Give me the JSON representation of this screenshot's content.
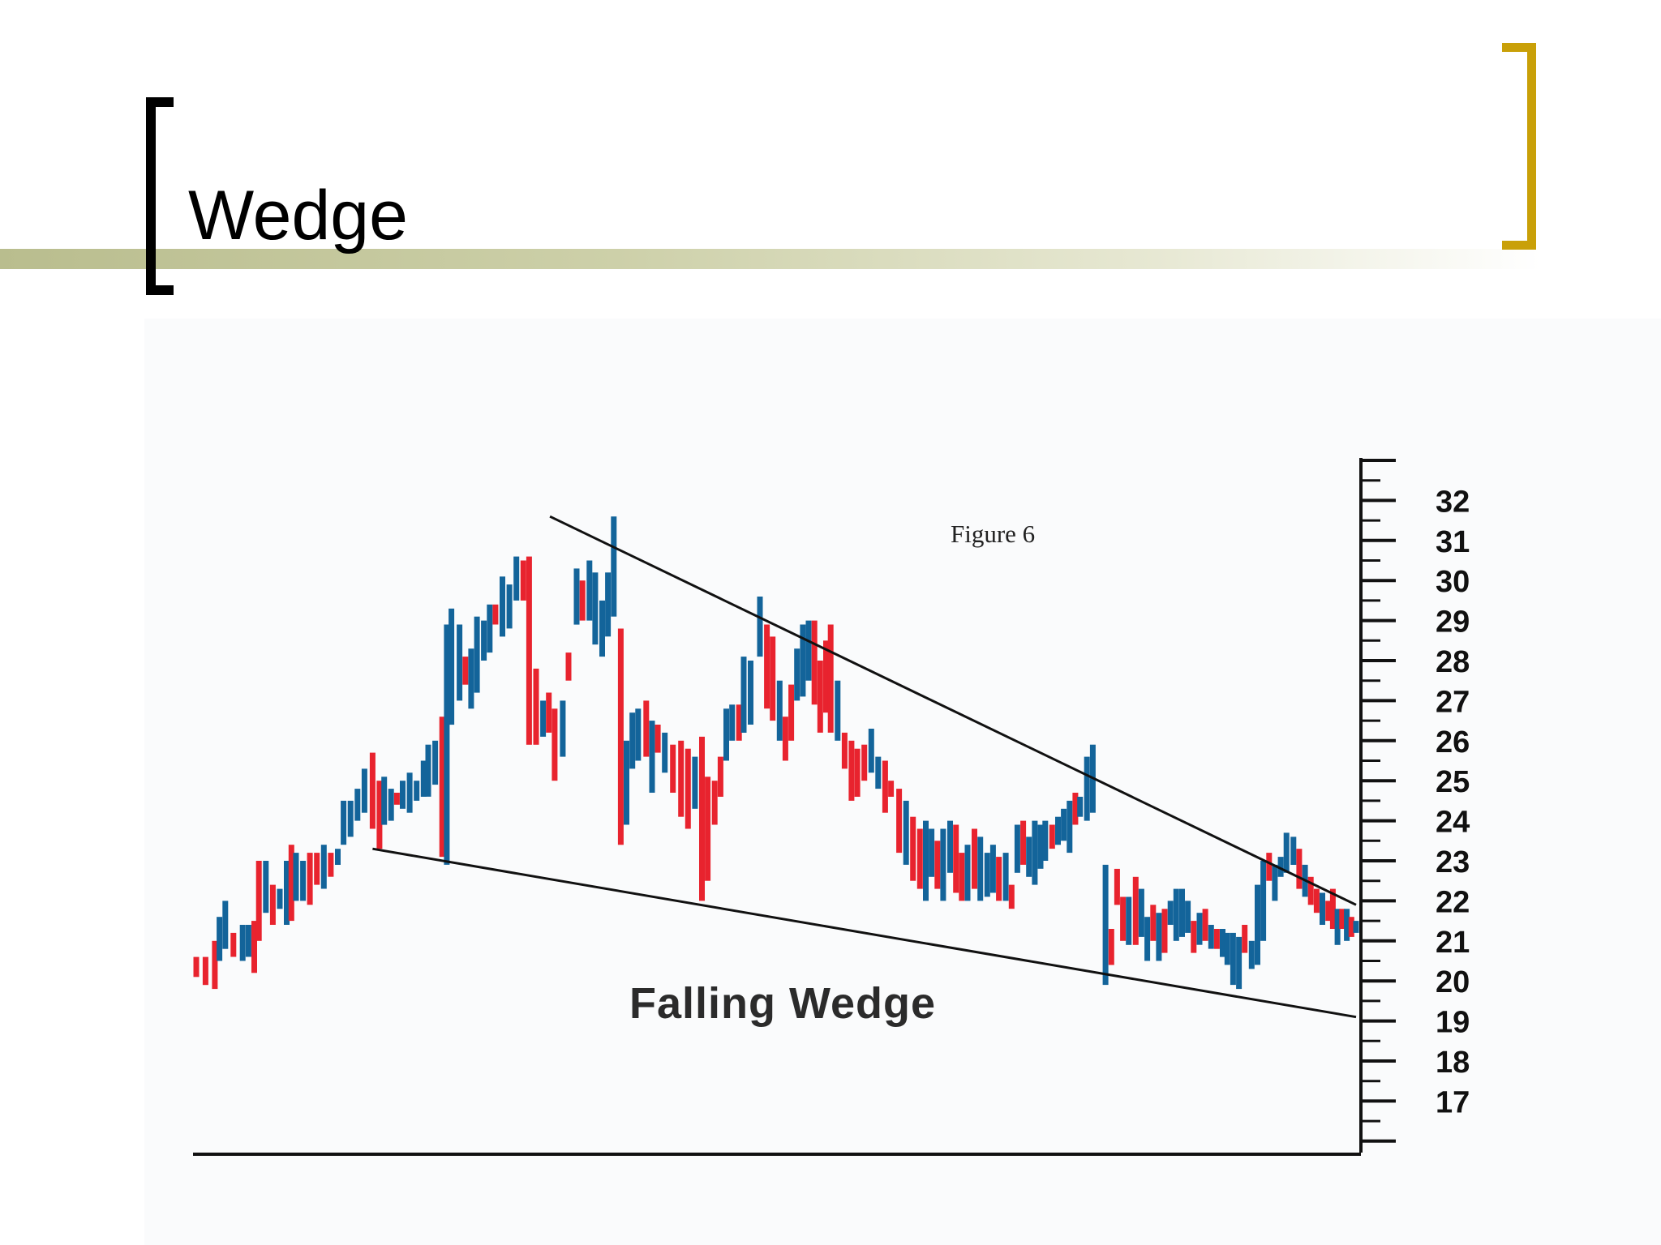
{
  "slide": {
    "title": "Wedge"
  },
  "colors": {
    "band": "#c7ca9e",
    "left_bracket": "#000000",
    "right_bracket": "#c9a008",
    "bar_up": "#13649a",
    "bar_down": "#e8232e",
    "trendline": "#111111"
  },
  "chart_data": {
    "type": "bar",
    "subtype": "ohlc-price-bars",
    "title": "Figure 6",
    "annotation": "Falling Wedge",
    "ylabel": "",
    "xlabel": "",
    "y_axis_position": "right",
    "ylim": [
      16,
      33
    ],
    "y_ticks": [
      17,
      18,
      19,
      20,
      21,
      22,
      23,
      24,
      25,
      26,
      27,
      28,
      29,
      30,
      31,
      32
    ],
    "grid": false,
    "trendlines": [
      {
        "name": "upper",
        "from": [
          0.305,
          31.6
        ],
        "to": [
          1.0,
          21.9
        ]
      },
      {
        "name": "lower",
        "from": [
          0.152,
          23.3
        ],
        "to": [
          1.0,
          19.1
        ]
      }
    ],
    "bars": [
      {
        "x": 0.0,
        "low": 20.1,
        "high": 20.6,
        "dir": "down"
      },
      {
        "x": 0.008,
        "low": 19.9,
        "high": 20.6,
        "dir": "down"
      },
      {
        "x": 0.016,
        "low": 19.8,
        "high": 21.0,
        "dir": "down"
      },
      {
        "x": 0.02,
        "low": 20.5,
        "high": 21.6,
        "dir": "up"
      },
      {
        "x": 0.025,
        "low": 20.8,
        "high": 22.0,
        "dir": "up"
      },
      {
        "x": 0.032,
        "low": 20.6,
        "high": 21.2,
        "dir": "down"
      },
      {
        "x": 0.04,
        "low": 20.5,
        "high": 21.4,
        "dir": "up"
      },
      {
        "x": 0.045,
        "low": 20.6,
        "high": 21.4,
        "dir": "up"
      },
      {
        "x": 0.05,
        "low": 20.2,
        "high": 21.5,
        "dir": "down"
      },
      {
        "x": 0.054,
        "low": 21.0,
        "high": 23.0,
        "dir": "down"
      },
      {
        "x": 0.06,
        "low": 21.7,
        "high": 23.0,
        "dir": "up"
      },
      {
        "x": 0.066,
        "low": 21.4,
        "high": 22.4,
        "dir": "down"
      },
      {
        "x": 0.072,
        "low": 21.8,
        "high": 22.3,
        "dir": "up"
      },
      {
        "x": 0.078,
        "low": 21.4,
        "high": 23.0,
        "dir": "up"
      },
      {
        "x": 0.082,
        "low": 21.5,
        "high": 23.4,
        "dir": "down"
      },
      {
        "x": 0.086,
        "low": 22.0,
        "high": 23.2,
        "dir": "up"
      },
      {
        "x": 0.092,
        "low": 22.0,
        "high": 23.0,
        "dir": "up"
      },
      {
        "x": 0.098,
        "low": 21.9,
        "high": 23.2,
        "dir": "down"
      },
      {
        "x": 0.104,
        "low": 22.4,
        "high": 23.2,
        "dir": "down"
      },
      {
        "x": 0.11,
        "low": 22.3,
        "high": 23.4,
        "dir": "up"
      },
      {
        "x": 0.116,
        "low": 22.6,
        "high": 23.2,
        "dir": "down"
      },
      {
        "x": 0.122,
        "low": 22.9,
        "high": 23.3,
        "dir": "up"
      },
      {
        "x": 0.127,
        "low": 23.4,
        "high": 24.5,
        "dir": "up"
      },
      {
        "x": 0.133,
        "low": 23.6,
        "high": 24.5,
        "dir": "up"
      },
      {
        "x": 0.139,
        "low": 24.0,
        "high": 24.8,
        "dir": "up"
      },
      {
        "x": 0.145,
        "low": 24.2,
        "high": 25.3,
        "dir": "up"
      },
      {
        "x": 0.152,
        "low": 23.8,
        "high": 25.7,
        "dir": "down"
      },
      {
        "x": 0.158,
        "low": 23.3,
        "high": 25.0,
        "dir": "down"
      },
      {
        "x": 0.162,
        "low": 23.9,
        "high": 25.1,
        "dir": "up"
      },
      {
        "x": 0.168,
        "low": 24.0,
        "high": 24.8,
        "dir": "up"
      },
      {
        "x": 0.173,
        "low": 24.4,
        "high": 24.7,
        "dir": "down"
      },
      {
        "x": 0.178,
        "low": 24.3,
        "high": 25.0,
        "dir": "up"
      },
      {
        "x": 0.184,
        "low": 24.2,
        "high": 25.2,
        "dir": "up"
      },
      {
        "x": 0.19,
        "low": 24.5,
        "high": 25.0,
        "dir": "up"
      },
      {
        "x": 0.196,
        "low": 24.6,
        "high": 25.5,
        "dir": "up"
      },
      {
        "x": 0.2,
        "low": 24.6,
        "high": 25.9,
        "dir": "up"
      },
      {
        "x": 0.206,
        "low": 24.9,
        "high": 26.0,
        "dir": "up"
      },
      {
        "x": 0.212,
        "low": 23.1,
        "high": 26.6,
        "dir": "down"
      },
      {
        "x": 0.216,
        "low": 22.9,
        "high": 28.9,
        "dir": "up"
      },
      {
        "x": 0.22,
        "low": 26.4,
        "high": 29.3,
        "dir": "up"
      },
      {
        "x": 0.227,
        "low": 27.0,
        "high": 28.9,
        "dir": "up"
      },
      {
        "x": 0.232,
        "low": 27.4,
        "high": 28.1,
        "dir": "down"
      },
      {
        "x": 0.237,
        "low": 26.8,
        "high": 28.3,
        "dir": "up"
      },
      {
        "x": 0.242,
        "low": 27.2,
        "high": 29.1,
        "dir": "up"
      },
      {
        "x": 0.248,
        "low": 28.0,
        "high": 29.0,
        "dir": "up"
      },
      {
        "x": 0.253,
        "low": 28.2,
        "high": 29.4,
        "dir": "up"
      },
      {
        "x": 0.258,
        "low": 28.9,
        "high": 29.4,
        "dir": "down"
      },
      {
        "x": 0.264,
        "low": 28.6,
        "high": 30.1,
        "dir": "up"
      },
      {
        "x": 0.27,
        "low": 28.8,
        "high": 29.9,
        "dir": "up"
      },
      {
        "x": 0.276,
        "low": 29.5,
        "high": 30.6,
        "dir": "up"
      },
      {
        "x": 0.282,
        "low": 29.5,
        "high": 30.5,
        "dir": "down"
      },
      {
        "x": 0.287,
        "low": 25.9,
        "high": 30.6,
        "dir": "down"
      },
      {
        "x": 0.293,
        "low": 25.9,
        "high": 27.8,
        "dir": "down"
      },
      {
        "x": 0.299,
        "low": 26.1,
        "high": 27.0,
        "dir": "up"
      },
      {
        "x": 0.304,
        "low": 26.2,
        "high": 27.2,
        "dir": "down"
      },
      {
        "x": 0.309,
        "low": 25.0,
        "high": 26.8,
        "dir": "down"
      },
      {
        "x": 0.316,
        "low": 25.6,
        "high": 27.0,
        "dir": "up"
      },
      {
        "x": 0.321,
        "low": 27.5,
        "high": 28.2,
        "dir": "down"
      },
      {
        "x": 0.328,
        "low": 28.9,
        "high": 30.3,
        "dir": "up"
      },
      {
        "x": 0.333,
        "low": 29.0,
        "high": 30.0,
        "dir": "down"
      },
      {
        "x": 0.339,
        "low": 29.0,
        "high": 30.5,
        "dir": "up"
      },
      {
        "x": 0.344,
        "low": 28.4,
        "high": 30.2,
        "dir": "up"
      },
      {
        "x": 0.35,
        "low": 28.1,
        "high": 29.5,
        "dir": "up"
      },
      {
        "x": 0.355,
        "low": 28.6,
        "high": 30.2,
        "dir": "up"
      },
      {
        "x": 0.36,
        "low": 29.1,
        "high": 31.6,
        "dir": "up"
      },
      {
        "x": 0.366,
        "low": 23.4,
        "high": 28.8,
        "dir": "down"
      },
      {
        "x": 0.371,
        "low": 23.9,
        "high": 26.0,
        "dir": "up"
      },
      {
        "x": 0.376,
        "low": 25.3,
        "high": 26.7,
        "dir": "up"
      },
      {
        "x": 0.381,
        "low": 25.5,
        "high": 26.8,
        "dir": "up"
      },
      {
        "x": 0.388,
        "low": 25.6,
        "high": 27.0,
        "dir": "down"
      },
      {
        "x": 0.393,
        "low": 24.7,
        "high": 26.5,
        "dir": "up"
      },
      {
        "x": 0.398,
        "low": 25.7,
        "high": 26.4,
        "dir": "down"
      },
      {
        "x": 0.404,
        "low": 25.2,
        "high": 26.2,
        "dir": "up"
      },
      {
        "x": 0.411,
        "low": 24.7,
        "high": 25.9,
        "dir": "down"
      },
      {
        "x": 0.418,
        "low": 24.1,
        "high": 26.0,
        "dir": "down"
      },
      {
        "x": 0.424,
        "low": 23.8,
        "high": 25.8,
        "dir": "down"
      },
      {
        "x": 0.43,
        "low": 24.3,
        "high": 25.6,
        "dir": "up"
      },
      {
        "x": 0.436,
        "low": 22.0,
        "high": 26.1,
        "dir": "down"
      },
      {
        "x": 0.441,
        "low": 22.5,
        "high": 25.1,
        "dir": "down"
      },
      {
        "x": 0.447,
        "low": 23.9,
        "high": 25.0,
        "dir": "down"
      },
      {
        "x": 0.452,
        "low": 24.6,
        "high": 25.6,
        "dir": "down"
      },
      {
        "x": 0.457,
        "low": 25.5,
        "high": 26.8,
        "dir": "up"
      },
      {
        "x": 0.462,
        "low": 26.0,
        "high": 26.9,
        "dir": "up"
      },
      {
        "x": 0.468,
        "low": 26.0,
        "high": 26.9,
        "dir": "down"
      },
      {
        "x": 0.472,
        "low": 26.2,
        "high": 28.1,
        "dir": "up"
      },
      {
        "x": 0.478,
        "low": 26.4,
        "high": 28.0,
        "dir": "up"
      },
      {
        "x": 0.486,
        "low": 28.1,
        "high": 29.6,
        "dir": "up"
      },
      {
        "x": 0.492,
        "low": 26.8,
        "high": 28.9,
        "dir": "down"
      },
      {
        "x": 0.497,
        "low": 26.5,
        "high": 28.6,
        "dir": "down"
      },
      {
        "x": 0.503,
        "low": 26.0,
        "high": 27.5,
        "dir": "up"
      },
      {
        "x": 0.508,
        "low": 25.5,
        "high": 26.6,
        "dir": "down"
      },
      {
        "x": 0.513,
        "low": 26.0,
        "high": 27.4,
        "dir": "down"
      },
      {
        "x": 0.518,
        "low": 27.0,
        "high": 28.3,
        "dir": "up"
      },
      {
        "x": 0.523,
        "low": 27.1,
        "high": 28.9,
        "dir": "up"
      },
      {
        "x": 0.528,
        "low": 27.5,
        "high": 29.0,
        "dir": "up"
      },
      {
        "x": 0.533,
        "low": 26.9,
        "high": 29.0,
        "dir": "down"
      },
      {
        "x": 0.538,
        "low": 26.2,
        "high": 28.0,
        "dir": "down"
      },
      {
        "x": 0.543,
        "low": 26.7,
        "high": 28.5,
        "dir": "down"
      },
      {
        "x": 0.547,
        "low": 26.2,
        "high": 28.9,
        "dir": "down"
      },
      {
        "x": 0.553,
        "low": 26.0,
        "high": 27.5,
        "dir": "up"
      },
      {
        "x": 0.559,
        "low": 25.3,
        "high": 26.2,
        "dir": "down"
      },
      {
        "x": 0.565,
        "low": 24.5,
        "high": 26.0,
        "dir": "down"
      },
      {
        "x": 0.57,
        "low": 24.6,
        "high": 25.8,
        "dir": "down"
      },
      {
        "x": 0.576,
        "low": 25.0,
        "high": 25.9,
        "dir": "down"
      },
      {
        "x": 0.582,
        "low": 25.2,
        "high": 26.3,
        "dir": "up"
      },
      {
        "x": 0.588,
        "low": 24.8,
        "high": 25.6,
        "dir": "up"
      },
      {
        "x": 0.594,
        "low": 24.2,
        "high": 25.5,
        "dir": "down"
      },
      {
        "x": 0.599,
        "low": 24.6,
        "high": 25.0,
        "dir": "down"
      },
      {
        "x": 0.606,
        "low": 23.2,
        "high": 24.8,
        "dir": "down"
      },
      {
        "x": 0.612,
        "low": 22.9,
        "high": 24.5,
        "dir": "up"
      },
      {
        "x": 0.618,
        "low": 22.5,
        "high": 24.1,
        "dir": "down"
      },
      {
        "x": 0.624,
        "low": 22.3,
        "high": 23.8,
        "dir": "down"
      },
      {
        "x": 0.629,
        "low": 22.0,
        "high": 24.0,
        "dir": "up"
      },
      {
        "x": 0.634,
        "low": 22.6,
        "high": 23.8,
        "dir": "up"
      },
      {
        "x": 0.639,
        "low": 22.3,
        "high": 23.5,
        "dir": "down"
      },
      {
        "x": 0.644,
        "low": 22.0,
        "high": 23.8,
        "dir": "up"
      },
      {
        "x": 0.65,
        "low": 22.7,
        "high": 24.0,
        "dir": "up"
      },
      {
        "x": 0.655,
        "low": 22.2,
        "high": 23.9,
        "dir": "down"
      },
      {
        "x": 0.66,
        "low": 22.0,
        "high": 23.2,
        "dir": "down"
      },
      {
        "x": 0.665,
        "low": 22.0,
        "high": 23.4,
        "dir": "up"
      },
      {
        "x": 0.671,
        "low": 22.3,
        "high": 23.8,
        "dir": "down"
      },
      {
        "x": 0.676,
        "low": 22.0,
        "high": 23.6,
        "dir": "up"
      },
      {
        "x": 0.682,
        "low": 22.1,
        "high": 23.2,
        "dir": "up"
      },
      {
        "x": 0.687,
        "low": 22.2,
        "high": 23.4,
        "dir": "up"
      },
      {
        "x": 0.692,
        "low": 22.0,
        "high": 23.1,
        "dir": "down"
      },
      {
        "x": 0.698,
        "low": 22.0,
        "high": 23.2,
        "dir": "up"
      },
      {
        "x": 0.703,
        "low": 21.8,
        "high": 22.4,
        "dir": "down"
      },
      {
        "x": 0.708,
        "low": 22.7,
        "high": 23.9,
        "dir": "up"
      },
      {
        "x": 0.713,
        "low": 22.9,
        "high": 24.0,
        "dir": "down"
      },
      {
        "x": 0.718,
        "low": 22.6,
        "high": 23.6,
        "dir": "up"
      },
      {
        "x": 0.723,
        "low": 22.4,
        "high": 24.0,
        "dir": "up"
      },
      {
        "x": 0.728,
        "low": 22.8,
        "high": 23.9,
        "dir": "up"
      },
      {
        "x": 0.732,
        "low": 23.0,
        "high": 24.0,
        "dir": "up"
      },
      {
        "x": 0.738,
        "low": 23.3,
        "high": 23.9,
        "dir": "down"
      },
      {
        "x": 0.743,
        "low": 23.4,
        "high": 24.1,
        "dir": "up"
      },
      {
        "x": 0.748,
        "low": 23.5,
        "high": 24.3,
        "dir": "up"
      },
      {
        "x": 0.753,
        "low": 23.2,
        "high": 24.5,
        "dir": "up"
      },
      {
        "x": 0.758,
        "low": 23.9,
        "high": 24.7,
        "dir": "down"
      },
      {
        "x": 0.762,
        "low": 24.1,
        "high": 24.6,
        "dir": "up"
      },
      {
        "x": 0.768,
        "low": 24.0,
        "high": 25.6,
        "dir": "up"
      },
      {
        "x": 0.773,
        "low": 24.2,
        "high": 25.9,
        "dir": "up"
      },
      {
        "x": 0.784,
        "low": 19.9,
        "high": 22.9,
        "dir": "up"
      },
      {
        "x": 0.789,
        "low": 20.4,
        "high": 21.3,
        "dir": "down"
      },
      {
        "x": 0.794,
        "low": 21.9,
        "high": 22.8,
        "dir": "down"
      },
      {
        "x": 0.799,
        "low": 21.0,
        "high": 22.1,
        "dir": "down"
      },
      {
        "x": 0.804,
        "low": 20.9,
        "high": 22.1,
        "dir": "up"
      },
      {
        "x": 0.81,
        "low": 20.9,
        "high": 22.6,
        "dir": "down"
      },
      {
        "x": 0.815,
        "low": 21.1,
        "high": 22.3,
        "dir": "up"
      },
      {
        "x": 0.82,
        "low": 20.5,
        "high": 21.6,
        "dir": "up"
      },
      {
        "x": 0.825,
        "low": 21.0,
        "high": 21.9,
        "dir": "down"
      },
      {
        "x": 0.83,
        "low": 20.5,
        "high": 21.7,
        "dir": "up"
      },
      {
        "x": 0.835,
        "low": 20.7,
        "high": 21.8,
        "dir": "down"
      },
      {
        "x": 0.84,
        "low": 21.4,
        "high": 22.0,
        "dir": "up"
      },
      {
        "x": 0.845,
        "low": 21.0,
        "high": 22.3,
        "dir": "up"
      },
      {
        "x": 0.85,
        "low": 21.1,
        "high": 22.3,
        "dir": "up"
      },
      {
        "x": 0.855,
        "low": 21.2,
        "high": 22.0,
        "dir": "up"
      },
      {
        "x": 0.86,
        "low": 20.7,
        "high": 21.5,
        "dir": "down"
      },
      {
        "x": 0.865,
        "low": 20.9,
        "high": 21.7,
        "dir": "up"
      },
      {
        "x": 0.87,
        "low": 21.0,
        "high": 21.8,
        "dir": "down"
      },
      {
        "x": 0.875,
        "low": 20.8,
        "high": 21.4,
        "dir": "up"
      },
      {
        "x": 0.88,
        "low": 20.8,
        "high": 21.3,
        "dir": "down"
      },
      {
        "x": 0.885,
        "low": 20.6,
        "high": 21.3,
        "dir": "up"
      },
      {
        "x": 0.889,
        "low": 20.4,
        "high": 21.2,
        "dir": "up"
      },
      {
        "x": 0.894,
        "low": 19.9,
        "high": 21.2,
        "dir": "up"
      },
      {
        "x": 0.899,
        "low": 19.8,
        "high": 21.1,
        "dir": "up"
      },
      {
        "x": 0.904,
        "low": 20.7,
        "high": 21.4,
        "dir": "down"
      },
      {
        "x": 0.91,
        "low": 20.3,
        "high": 21.0,
        "dir": "up"
      },
      {
        "x": 0.915,
        "low": 20.4,
        "high": 22.4,
        "dir": "up"
      },
      {
        "x": 0.92,
        "low": 21.0,
        "high": 23.0,
        "dir": "up"
      },
      {
        "x": 0.925,
        "low": 22.5,
        "high": 23.2,
        "dir": "down"
      },
      {
        "x": 0.93,
        "low": 22.0,
        "high": 22.9,
        "dir": "up"
      },
      {
        "x": 0.935,
        "low": 22.6,
        "high": 23.1,
        "dir": "up"
      },
      {
        "x": 0.94,
        "low": 22.7,
        "high": 23.7,
        "dir": "up"
      },
      {
        "x": 0.946,
        "low": 22.9,
        "high": 23.6,
        "dir": "up"
      },
      {
        "x": 0.951,
        "low": 22.3,
        "high": 23.3,
        "dir": "down"
      },
      {
        "x": 0.956,
        "low": 22.1,
        "high": 22.9,
        "dir": "up"
      },
      {
        "x": 0.961,
        "low": 21.9,
        "high": 22.6,
        "dir": "down"
      },
      {
        "x": 0.966,
        "low": 21.7,
        "high": 22.3,
        "dir": "down"
      },
      {
        "x": 0.971,
        "low": 21.4,
        "high": 22.2,
        "dir": "up"
      },
      {
        "x": 0.976,
        "low": 21.5,
        "high": 22.0,
        "dir": "down"
      },
      {
        "x": 0.98,
        "low": 21.3,
        "high": 22.3,
        "dir": "down"
      },
      {
        "x": 0.984,
        "low": 20.9,
        "high": 21.8,
        "dir": "up"
      },
      {
        "x": 0.988,
        "low": 21.3,
        "high": 21.8,
        "dir": "down"
      },
      {
        "x": 0.992,
        "low": 21.0,
        "high": 21.8,
        "dir": "up"
      },
      {
        "x": 0.996,
        "low": 21.1,
        "high": 21.6,
        "dir": "down"
      },
      {
        "x": 1.0,
        "low": 21.2,
        "high": 21.5,
        "dir": "up"
      }
    ]
  }
}
